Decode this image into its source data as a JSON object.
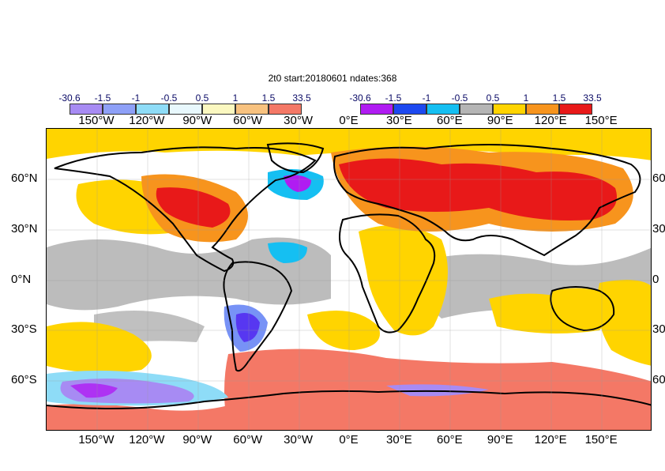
{
  "title": "2t0 start:20180601 ndates:368",
  "legend_left": {
    "labels": [
      "-30.6",
      "-1.5",
      "-1",
      "-0.5",
      "0.5",
      "1",
      "1.5",
      "33.5"
    ],
    "colors": [
      "#a78bf3",
      "#8ea0f7",
      "#8edcf7",
      "#e8f8fd",
      "#fbf8c0",
      "#f8c27f",
      "#f47866"
    ]
  },
  "legend_right": {
    "labels": [
      "-30.6",
      "-1.5",
      "-1",
      "-0.5",
      "0.5",
      "1",
      "1.5",
      "33.5"
    ],
    "colors": [
      "#b01cf2",
      "#1d49f0",
      "#15bff2",
      "#b5b5b5",
      "#ffd400",
      "#f7941d",
      "#e81919"
    ]
  },
  "top_lon_labels": [
    "150°W",
    "120°W",
    "90°W",
    "60°W",
    "30°W",
    "0°E",
    "30°E",
    "60°E",
    "90°E",
    "120°E",
    "150°E"
  ],
  "bottom_lon_labels": [
    "150°W",
    "120°W",
    "90°W",
    "60°W",
    "30°W",
    "0°E",
    "30°E",
    "60°E",
    "90°E",
    "120°E",
    "150°E"
  ],
  "lat_labels": [
    "60°N",
    "30°N",
    "0°N",
    "30°S",
    "60°S"
  ],
  "lat_labels_right": [
    "60",
    "30",
    "0",
    "30",
    "60"
  ],
  "map": {
    "lon_range": [
      -180,
      180
    ],
    "lat_range": [
      -90,
      90
    ],
    "lon_ticks": [
      -150,
      -120,
      -90,
      -60,
      -30,
      0,
      30,
      60,
      90,
      120,
      150
    ],
    "lat_ticks": [
      60,
      30,
      0,
      -30,
      -60
    ]
  }
}
